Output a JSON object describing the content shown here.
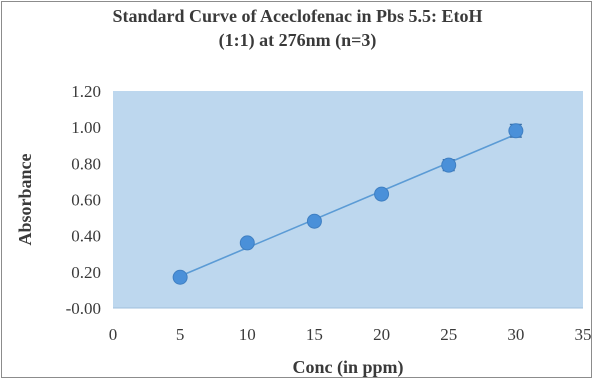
{
  "chart_data": {
    "type": "scatter",
    "title_lines": [
      "Standard Curve of Aceclofenac in Pbs 5.5: EtoH",
      "(1:1) at 276nm (n=3)"
    ],
    "xlabel": "Conc (in ppm)",
    "ylabel": "Absorbance",
    "xlim": [
      0,
      35
    ],
    "ylim": [
      0,
      1.2
    ],
    "x_ticks": [
      "0",
      "5",
      "10",
      "15",
      "20",
      "25",
      "30",
      "35"
    ],
    "y_ticks": [
      "-0.00",
      "0.20",
      "0.40",
      "0.60",
      "0.80",
      "1.00",
      "1.20"
    ],
    "trendline": "linear",
    "grid": false,
    "series": [
      {
        "x": [
          5,
          10,
          15,
          20,
          25,
          30
        ],
        "y": [
          0.17,
          0.36,
          0.48,
          0.63,
          0.79,
          0.98
        ],
        "error": [
          0.01,
          0.01,
          0.01,
          0.015,
          0.03,
          0.035
        ]
      }
    ],
    "colors": {
      "plot_background": "#bdd7ee",
      "marker": "#4a90d9",
      "line": "#5b9bd5",
      "text": "#3a3a3a"
    }
  }
}
